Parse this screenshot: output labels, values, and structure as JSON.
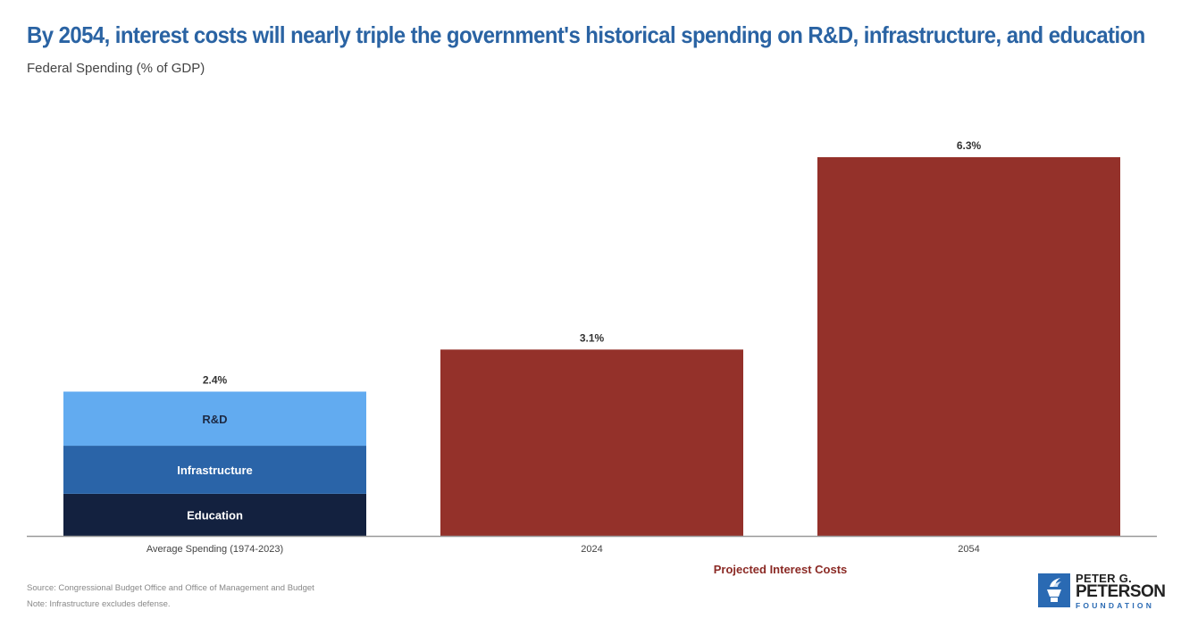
{
  "header": {
    "title": "By 2054, interest costs will nearly triple the government's historical spending on R&D, infrastructure, and education",
    "subtitle": "Federal Spending (% of GDP)"
  },
  "footer": {
    "source": "Source: Congressional Budget Office and Office of Management and Budget",
    "note": "Note: Infrastructure excludes defense."
  },
  "logo": {
    "line1": "PETER G.",
    "line2": "PETERSON",
    "line3": "FOUNDATION",
    "icon": "torch-icon",
    "color": "#2a6ab3"
  },
  "chart_data": {
    "type": "bar",
    "title": "By 2054, interest costs will nearly triple the government's historical spending on R&D, infrastructure, and education",
    "ylabel": "Federal Spending (% of GDP)",
    "xlabel": "",
    "ylim": [
      0,
      6.3
    ],
    "grid": false,
    "categories": [
      "Average Spending (1974-2023)",
      "2024",
      "2054"
    ],
    "group_label": {
      "text": "Projected Interest Costs",
      "spans": [
        "2024",
        "2054"
      ],
      "color": "#8b2a25"
    },
    "totals_labels": [
      "2.4%",
      "3.1%",
      "6.3%"
    ],
    "bars": [
      {
        "category": "Average Spending (1974-2023)",
        "total": 2.4,
        "stacked": true,
        "segments": [
          {
            "name": "Education",
            "value": 0.7,
            "color": "#13213f",
            "text_color": "#ffffff"
          },
          {
            "name": "Infrastructure",
            "value": 0.8,
            "color": "#2a64a8",
            "text_color": "#ffffff"
          },
          {
            "name": "R&D",
            "value": 0.9,
            "color": "#62abf0",
            "text_color": "#1d2a44"
          }
        ]
      },
      {
        "category": "2024",
        "total": 3.1,
        "stacked": false,
        "color": "#94312a"
      },
      {
        "category": "2054",
        "total": 6.3,
        "stacked": false,
        "color": "#94312a"
      }
    ]
  }
}
